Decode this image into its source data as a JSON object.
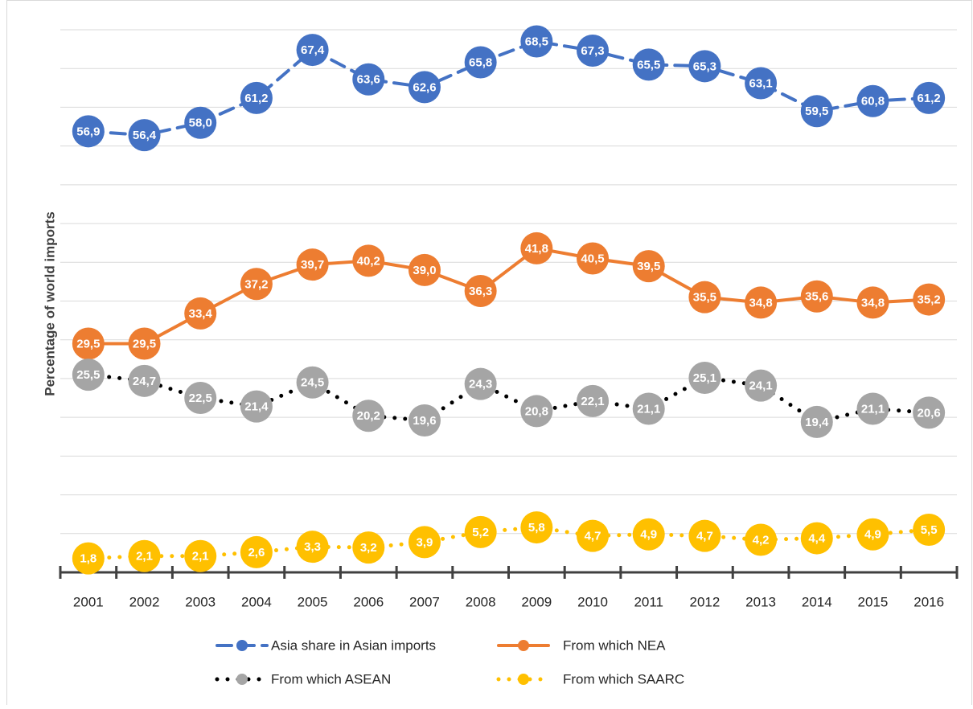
{
  "chart_data": {
    "type": "line",
    "y_label": "Percentage of world imports",
    "categories": [
      "2001",
      "2002",
      "2003",
      "2004",
      "2005",
      "2006",
      "2007",
      "2008",
      "2009",
      "2010",
      "2011",
      "2012",
      "2013",
      "2014",
      "2015",
      "2016"
    ],
    "ylim": [
      0,
      70
    ],
    "yticks": [
      0,
      5,
      10,
      15,
      20,
      25,
      30,
      35,
      40,
      45,
      50,
      55,
      60,
      65,
      70
    ],
    "grid": true,
    "series": [
      {
        "name": "Asia share in Asian imports",
        "color": "#4472c4",
        "line_color": "#4472c4",
        "line_style": "dashed",
        "values": [
          56.9,
          56.4,
          58,
          61.2,
          67.4,
          63.6,
          62.6,
          65.8,
          68.5,
          67.3,
          65.5,
          65.3,
          63.1,
          59.5,
          60.8,
          61.2
        ],
        "value_labels": [
          "56,9",
          "56,4",
          "58,0",
          "61,2",
          "67,4",
          "63,6",
          "62,6",
          "65,8",
          "68,5",
          "67,3",
          "65,5",
          "65,3",
          "63,1",
          "59,5",
          "60,8",
          "61,2"
        ]
      },
      {
        "name": "From which NEA",
        "color": "#ed7d31",
        "line_color": "#ed7d31",
        "line_style": "solid",
        "values": [
          29.5,
          29.5,
          33.4,
          37.2,
          39.7,
          40.2,
          39,
          36.3,
          41.8,
          40.5,
          39.5,
          35.5,
          34.8,
          35.6,
          34.8,
          35.2
        ],
        "value_labels": [
          "29,5",
          "29,5",
          "33,4",
          "37,2",
          "39,7",
          "40,2",
          "39,0",
          "36,3",
          "41,8",
          "40,5",
          "39,5",
          "35,5",
          "34,8",
          "35,6",
          "34,8",
          "35,2"
        ]
      },
      {
        "name": "From which ASEAN",
        "color": "#a5a5a5",
        "line_color": "#000000",
        "line_style": "dotted",
        "values": [
          25.5,
          24.7,
          22.5,
          21.4,
          24.5,
          20.2,
          19.6,
          24.3,
          20.8,
          22.1,
          21.1,
          25.1,
          24.1,
          19.4,
          21.1,
          20.6
        ],
        "value_labels": [
          "25,5",
          "24,7",
          "22,5",
          "21,4",
          "24,5",
          "20,2",
          "19,6",
          "24,3",
          "20,8",
          "22,1",
          "21,1",
          "25,1",
          "24,1",
          "19,4",
          "21,1",
          "20,6"
        ]
      },
      {
        "name": "From which SAARC",
        "color": "#ffc000",
        "line_color": "#ffc000",
        "line_style": "dotted",
        "values": [
          1.8,
          2.1,
          2.1,
          2.6,
          3.3,
          3.2,
          3.9,
          5.2,
          5.8,
          4.7,
          4.9,
          4.7,
          4.2,
          4.4,
          4.9,
          5.5
        ],
        "value_labels": [
          "1,8",
          "2,1",
          "2,1",
          "2,6",
          "3,3",
          "3,2",
          "3,9",
          "5,2",
          "5,8",
          "4,7",
          "4,9",
          "4,7",
          "4,2",
          "4,4",
          "4,9",
          "5,5"
        ]
      }
    ]
  }
}
